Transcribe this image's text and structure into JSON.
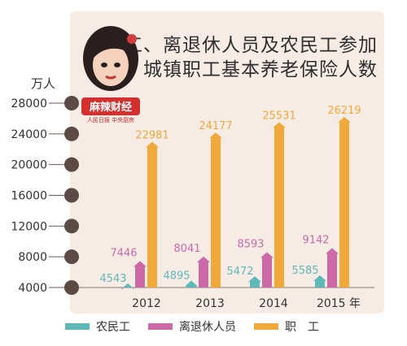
{
  "chart_data": {
    "type": "bar",
    "title": "职工、离退休人员及农民工参加城镇职工基本养老保险人数",
    "title_lines": [
      "职工、离退休人员及农民工参加",
      "城镇职工基本养老保险人数"
    ],
    "ylabel": "万人",
    "categories": [
      "2012",
      "2013",
      "2014",
      "2015 年"
    ],
    "yticks": [
      "28000",
      "24000",
      "20000",
      "16000",
      "12000",
      "8000",
      "4000"
    ],
    "ylim": [
      4000,
      28000
    ],
    "series": [
      {
        "name": "农民工",
        "values": [
          4543,
          4895,
          5472,
          5585
        ],
        "labels": [
          "4543",
          "4895",
          "5472",
          "5585"
        ],
        "color": "#5fb8b8"
      },
      {
        "name": "离退休人员",
        "values": [
          7446,
          8041,
          8593,
          9142
        ],
        "labels": [
          "7446",
          "8041",
          "8593",
          "9142"
        ],
        "color": "#cc6aa8"
      },
      {
        "name": "职　工",
        "values": [
          22981,
          24177,
          25531,
          26219
        ],
        "labels": [
          "22981",
          "24177",
          "25531",
          "26219"
        ],
        "color": "#f2a93c"
      }
    ],
    "legend_position": "bottom",
    "grid": false
  },
  "logo": {
    "text_main": "麻辣财经",
    "text_sub": "人民日报 中央厨房"
  }
}
